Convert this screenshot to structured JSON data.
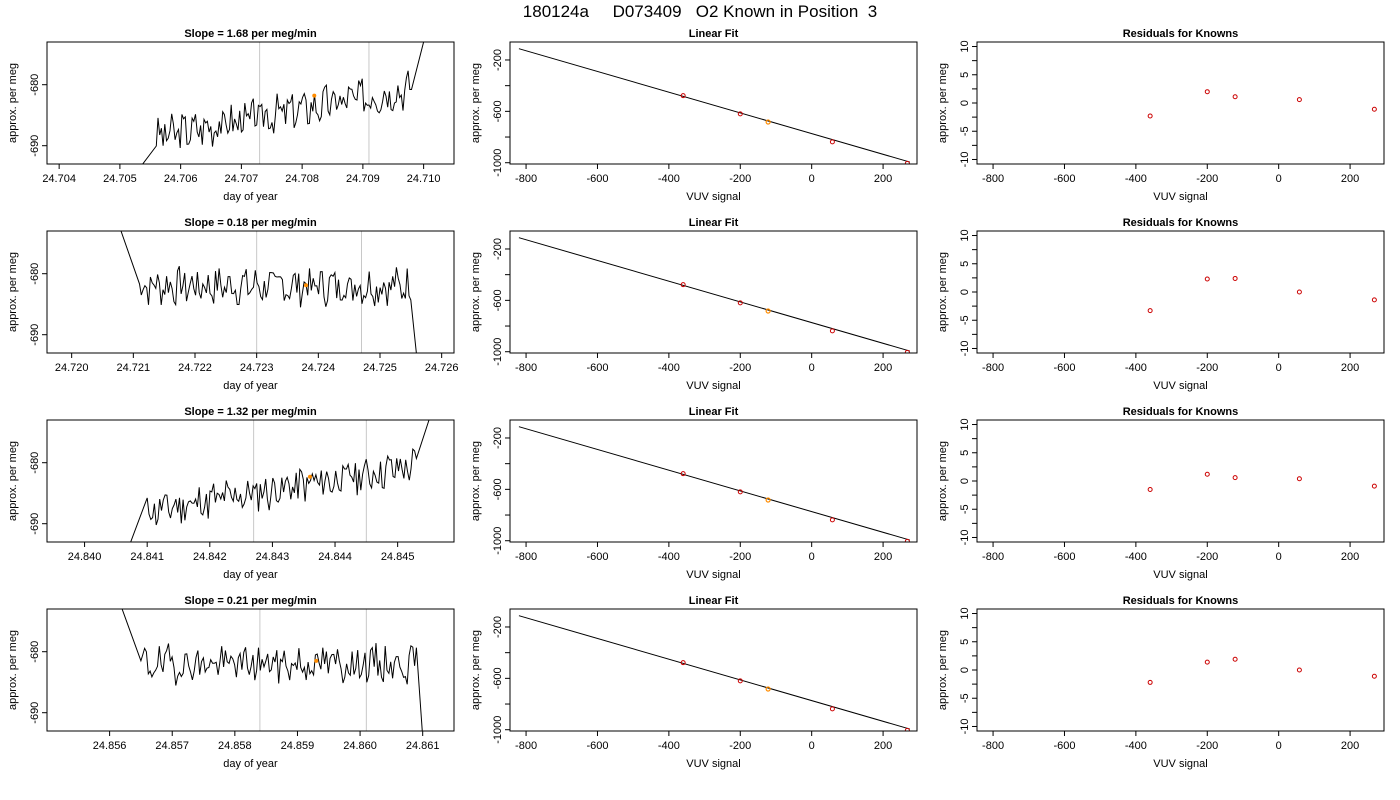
{
  "figure_title": "180124a     D073409   O2 Known in Position  3",
  "colors": {
    "series": "#000000",
    "marker": "#ff8c00",
    "residual": "#cc0000",
    "vline": "#c8c8c8",
    "axis": "#000000"
  },
  "chart_data": [
    {
      "type": "line",
      "row": 1,
      "panel": "time-series",
      "title": "Slope =  1.68  per meg/min",
      "xlabel": "day of year",
      "ylabel": "approx. per meg",
      "xlim": [
        24.7038,
        24.7105
      ],
      "ylim": [
        -693,
        -673
      ],
      "xticks": [
        "24.704",
        "24.705",
        "24.706",
        "24.707",
        "24.708",
        "24.709",
        "24.710"
      ],
      "yticks": [
        "-680",
        "-690"
      ],
      "vlines": [
        24.7073,
        24.7091
      ],
      "marker": {
        "x": 24.7082,
        "y": -681.8
      },
      "trace_start": [
        24.7053,
        -694
      ],
      "trace_end": [
        24.71,
        -673
      ],
      "trace_window": [
        24.7056,
        24.7098
      ],
      "trace_base": [
        -688.5,
        -680.5
      ],
      "trace_seed": 3
    },
    {
      "type": "line",
      "row": 1,
      "panel": "linear-fit",
      "title": "Linear Fit",
      "xlabel": "VUV signal",
      "ylabel": "approx. per meg",
      "xlim": [
        -845,
        295
      ],
      "ylim": [
        -1010,
        -60
      ],
      "xticks": [
        "-800",
        "-600",
        "-400",
        "-200",
        "0",
        "200"
      ],
      "yticks": [
        "-200",
        "-600",
        "-1000"
      ],
      "fit_line": {
        "x": [
          -820,
          275
        ],
        "y": [
          -112,
          -995
        ]
      },
      "points": [
        {
          "x": -360,
          "y": -478
        },
        {
          "x": -200,
          "y": -620
        },
        {
          "x": 58,
          "y": -838
        },
        {
          "x": 268,
          "y": -1005
        }
      ],
      "highlight": {
        "x": -122,
        "y": -683
      }
    },
    {
      "type": "scatter",
      "row": 1,
      "panel": "residuals",
      "title": "Residuals for Knowns",
      "xlabel": "VUV signal",
      "ylabel": "approx. per meg",
      "xlim": [
        -845,
        295
      ],
      "ylim": [
        -10.8,
        10.8
      ],
      "xticks": [
        "-800",
        "-600",
        "-400",
        "-200",
        "0",
        "200"
      ],
      "yticks": [
        "10",
        "5",
        "0",
        "-5",
        "-10"
      ],
      "points": [
        {
          "x": -360,
          "y": -2.3
        },
        {
          "x": -200,
          "y": 2.0
        },
        {
          "x": -122,
          "y": 1.1
        },
        {
          "x": 58,
          "y": 0.6
        },
        {
          "x": 268,
          "y": -1.1
        }
      ]
    },
    {
      "type": "line",
      "row": 2,
      "panel": "time-series",
      "title": "Slope =  0.18  per meg/min",
      "xlabel": "day of year",
      "ylabel": "approx. per meg",
      "xlim": [
        24.7196,
        24.7262
      ],
      "ylim": [
        -693,
        -673
      ],
      "xticks": [
        "24.720",
        "24.721",
        "24.722",
        "24.723",
        "24.724",
        "24.725",
        "24.726"
      ],
      "yticks": [
        "-680",
        "-690"
      ],
      "vlines": [
        24.723,
        24.7247
      ],
      "marker": {
        "x": 24.7238,
        "y": -681.9
      },
      "trace_start": [
        24.7208,
        -673
      ],
      "trace_end": [
        24.7256,
        -694
      ],
      "trace_window": [
        24.7211,
        24.7255
      ],
      "trace_base": [
        -682,
        -682
      ],
      "trace_seed": 7
    },
    {
      "type": "line",
      "row": 2,
      "panel": "linear-fit",
      "title": "Linear Fit",
      "xlabel": "VUV signal",
      "ylabel": "approx. per meg",
      "xlim": [
        -845,
        295
      ],
      "ylim": [
        -1010,
        -60
      ],
      "xticks": [
        "-800",
        "-600",
        "-400",
        "-200",
        "0",
        "200"
      ],
      "yticks": [
        "-200",
        "-600",
        "-1000"
      ],
      "fit_line": {
        "x": [
          -820,
          275
        ],
        "y": [
          -112,
          -995
        ]
      },
      "points": [
        {
          "x": -360,
          "y": -478
        },
        {
          "x": -200,
          "y": -620
        },
        {
          "x": 58,
          "y": -838
        },
        {
          "x": 268,
          "y": -1005
        }
      ],
      "highlight": {
        "x": -122,
        "y": -683
      }
    },
    {
      "type": "scatter",
      "row": 2,
      "panel": "residuals",
      "title": "Residuals for Knowns",
      "xlabel": "VUV signal",
      "ylabel": "approx. per meg",
      "xlim": [
        -845,
        295
      ],
      "ylim": [
        -10.8,
        10.8
      ],
      "xticks": [
        "-800",
        "-600",
        "-400",
        "-200",
        "0",
        "200"
      ],
      "yticks": [
        "10",
        "5",
        "0",
        "-5",
        "-10"
      ],
      "points": [
        {
          "x": -360,
          "y": -3.3
        },
        {
          "x": -200,
          "y": 2.3
        },
        {
          "x": -122,
          "y": 2.4
        },
        {
          "x": 58,
          "y": 0.0
        },
        {
          "x": 268,
          "y": -1.4
        }
      ]
    },
    {
      "type": "line",
      "row": 3,
      "panel": "time-series",
      "title": "Slope =  1.32  per meg/min",
      "xlabel": "day of year",
      "ylabel": "approx. per meg",
      "xlim": [
        24.8394,
        24.8459
      ],
      "ylim": [
        -693,
        -673
      ],
      "xticks": [
        "24.840",
        "24.841",
        "24.842",
        "24.843",
        "24.844",
        "24.845"
      ],
      "yticks": [
        "-680",
        "-690"
      ],
      "vlines": [
        24.8427,
        24.8445
      ],
      "marker": {
        "x": 24.8436,
        "y": -682.3
      },
      "trace_start": [
        24.8407,
        -694
      ],
      "trace_end": [
        24.8455,
        -673
      ],
      "trace_window": [
        24.841,
        24.8453
      ],
      "trace_base": [
        -688,
        -680.5
      ],
      "trace_seed": 11
    },
    {
      "type": "line",
      "row": 3,
      "panel": "linear-fit",
      "title": "Linear Fit",
      "xlabel": "VUV signal",
      "ylabel": "approx. per meg",
      "xlim": [
        -845,
        295
      ],
      "ylim": [
        -1010,
        -60
      ],
      "xticks": [
        "-800",
        "-600",
        "-400",
        "-200",
        "0",
        "200"
      ],
      "yticks": [
        "-200",
        "-600",
        "-1000"
      ],
      "fit_line": {
        "x": [
          -820,
          275
        ],
        "y": [
          -112,
          -995
        ]
      },
      "points": [
        {
          "x": -360,
          "y": -478
        },
        {
          "x": -200,
          "y": -620
        },
        {
          "x": 58,
          "y": -838
        },
        {
          "x": 268,
          "y": -1005
        }
      ],
      "highlight": {
        "x": -122,
        "y": -683
      }
    },
    {
      "type": "scatter",
      "row": 3,
      "panel": "residuals",
      "title": "Residuals for Knowns",
      "xlabel": "VUV signal",
      "ylabel": "approx. per meg",
      "xlim": [
        -845,
        295
      ],
      "ylim": [
        -10.8,
        10.8
      ],
      "xticks": [
        "-800",
        "-600",
        "-400",
        "-200",
        "0",
        "200"
      ],
      "yticks": [
        "10",
        "5",
        "0",
        "-5",
        "-10"
      ],
      "points": [
        {
          "x": -360,
          "y": -1.5
        },
        {
          "x": -200,
          "y": 1.2
        },
        {
          "x": -122,
          "y": 0.6
        },
        {
          "x": 58,
          "y": 0.4
        },
        {
          "x": 268,
          "y": -0.9
        }
      ]
    },
    {
      "type": "line",
      "row": 4,
      "panel": "time-series",
      "title": "Slope =  0.21  per meg/min",
      "xlabel": "day of year",
      "ylabel": "approx. per meg",
      "xlim": [
        24.855,
        24.8615
      ],
      "ylim": [
        -693,
        -673
      ],
      "xticks": [
        "24.856",
        "24.857",
        "24.858",
        "24.859",
        "24.860",
        "24.861"
      ],
      "yticks": [
        "-680",
        "-690"
      ],
      "vlines": [
        24.8584,
        24.8601
      ],
      "marker": {
        "x": 24.8593,
        "y": -681.5
      },
      "trace_start": [
        24.8562,
        -673
      ],
      "trace_end": [
        24.861,
        -694
      ],
      "trace_window": [
        24.8565,
        24.8609
      ],
      "trace_base": [
        -682,
        -682
      ],
      "trace_seed": 19
    },
    {
      "type": "line",
      "row": 4,
      "panel": "linear-fit",
      "title": "Linear Fit",
      "xlabel": "VUV signal",
      "ylabel": "approx. per meg",
      "xlim": [
        -845,
        295
      ],
      "ylim": [
        -1010,
        -60
      ],
      "xticks": [
        "-800",
        "-600",
        "-400",
        "-200",
        "0",
        "200"
      ],
      "yticks": [
        "-200",
        "-600",
        "-1000"
      ],
      "fit_line": {
        "x": [
          -820,
          275
        ],
        "y": [
          -112,
          -995
        ]
      },
      "points": [
        {
          "x": -360,
          "y": -478
        },
        {
          "x": -200,
          "y": -620
        },
        {
          "x": 58,
          "y": -838
        },
        {
          "x": 268,
          "y": -1005
        }
      ],
      "highlight": {
        "x": -122,
        "y": -683
      }
    },
    {
      "type": "scatter",
      "row": 4,
      "panel": "residuals",
      "title": "Residuals for Knowns",
      "xlabel": "VUV signal",
      "ylabel": "approx. per meg",
      "xlim": [
        -845,
        295
      ],
      "ylim": [
        -10.8,
        10.8
      ],
      "xticks": [
        "-800",
        "-600",
        "-400",
        "-200",
        "0",
        "200"
      ],
      "yticks": [
        "10",
        "5",
        "0",
        "-5",
        "-10"
      ],
      "points": [
        {
          "x": -360,
          "y": -2.2
        },
        {
          "x": -200,
          "y": 1.4
        },
        {
          "x": -122,
          "y": 1.9
        },
        {
          "x": 58,
          "y": 0.0
        },
        {
          "x": 268,
          "y": -1.1
        }
      ]
    }
  ]
}
